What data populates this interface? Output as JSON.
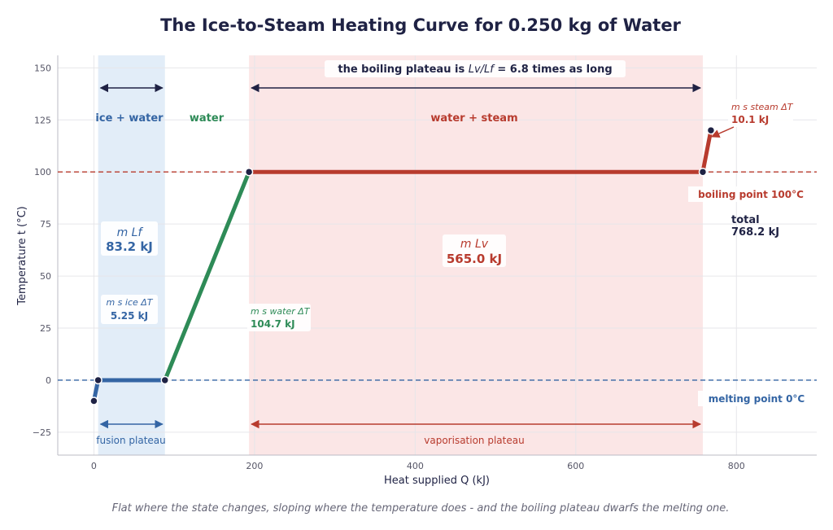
{
  "chart_data": {
    "type": "line",
    "title": "The Ice-to-Steam Heating Curve for 0.250 kg of Water",
    "xlabel": "Heat supplied  Q  (kJ)",
    "ylabel": "Temperature  t  (°C)",
    "caption": "Flat where the state changes, sloping where the temperature does - and the boiling plateau dwarfs the melting one.",
    "xlim": [
      -45,
      900
    ],
    "ylim": [
      -36,
      156
    ],
    "x_ticks": [
      0,
      200,
      400,
      600,
      800
    ],
    "y_ticks": [
      -25,
      0,
      25,
      50,
      75,
      100,
      125,
      150
    ],
    "grid": true,
    "colors": {
      "ice": "#3465a4",
      "water": "#2e8b57",
      "steam": "#b83b2e",
      "dark": "#1f2244",
      "fusion_band": "#e2edf8",
      "vapor_band": "#fbe6e6"
    },
    "series": [
      {
        "name": "ice",
        "points": [
          [
            0,
            -10
          ],
          [
            5.25,
            0
          ]
        ],
        "color_key": "ice"
      },
      {
        "name": "ice + water",
        "points": [
          [
            5.25,
            0
          ],
          [
            88.45,
            0
          ]
        ],
        "color_key": "ice"
      },
      {
        "name": "water",
        "points": [
          [
            88.45,
            0
          ],
          [
            193.15,
            100
          ]
        ],
        "color_key": "water"
      },
      {
        "name": "water + steam",
        "points": [
          [
            193.15,
            100
          ],
          [
            758.15,
            100
          ]
        ],
        "color_key": "steam"
      },
      {
        "name": "steam",
        "points": [
          [
            758.15,
            100
          ],
          [
            768.25,
            120
          ]
        ],
        "color_key": "steam"
      }
    ],
    "markers": [
      [
        0,
        -10
      ],
      [
        5.25,
        0
      ],
      [
        88.45,
        0
      ],
      [
        193.15,
        100
      ],
      [
        758.15,
        100
      ],
      [
        768.25,
        120
      ]
    ],
    "bands": [
      {
        "name": "fusion",
        "x": [
          5.25,
          88.45
        ],
        "color_key": "fusion_band"
      },
      {
        "name": "vaporisation",
        "x": [
          193.15,
          758.15
        ],
        "color_key": "vapor_band"
      }
    ],
    "reference_lines": [
      {
        "y": 100,
        "label": "boiling point  100°C",
        "color_key": "steam"
      },
      {
        "y": 0,
        "label": "melting point  0°C",
        "color_key": "ice"
      }
    ],
    "region_labels": {
      "ice_water": "ice + water",
      "water": "water",
      "water_steam": "water + steam"
    },
    "arrow_labels": {
      "top_note_prefix": "the boiling plateau is ",
      "top_note_ratio": "Lv/Lf",
      "top_note_suffix": " = 6.8 times as long",
      "fusion_plateau": "fusion plateau",
      "vaporisation_plateau": "vaporisation plateau"
    },
    "heat_annotations": {
      "mLf": {
        "formula": "m Lf",
        "value": "83.2 kJ"
      },
      "mLv": {
        "formula": "m Lv",
        "value": "565.0 kJ"
      },
      "ice": {
        "formula": "m s ice ΔT",
        "value": "5.25 kJ"
      },
      "water": {
        "formula": "m s water ΔT",
        "value": "104.7 kJ"
      },
      "steam": {
        "formula": "m s steam ΔT",
        "value": "10.1 kJ"
      },
      "total": {
        "label": "total",
        "value": "768.2 kJ"
      }
    }
  }
}
